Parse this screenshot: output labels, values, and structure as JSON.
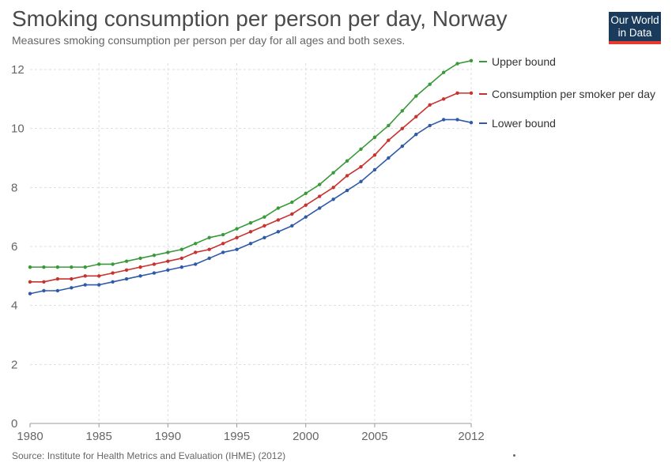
{
  "header": {
    "title": "Smoking consumption per person per day, Norway",
    "subtitle": "Measures smoking consumption per person per day for all ages and both sexes."
  },
  "logo": {
    "line1": "Our World",
    "line2": "in Data",
    "bg_color": "#1a3b5c",
    "accent_color": "#e63a2e"
  },
  "footer": {
    "source": "Source: Institute for Health Metrics and Evaluation (IHME) (2012)"
  },
  "chart_data": {
    "type": "line",
    "title": "Smoking consumption per person per day, Norway",
    "xlabel": "",
    "ylabel": "",
    "xlim": [
      1980,
      2012
    ],
    "ylim": [
      0,
      12
    ],
    "x_ticks": [
      1980,
      1985,
      1990,
      1995,
      2000,
      2005,
      2012
    ],
    "y_ticks": [
      0,
      2,
      4,
      6,
      8,
      10,
      12
    ],
    "grid": true,
    "legend_position": "right",
    "x": [
      1980,
      1981,
      1982,
      1983,
      1984,
      1985,
      1986,
      1987,
      1988,
      1989,
      1990,
      1991,
      1992,
      1993,
      1994,
      1995,
      1996,
      1997,
      1998,
      1999,
      2000,
      2001,
      2002,
      2003,
      2004,
      2005,
      2006,
      2007,
      2008,
      2009,
      2010,
      2011,
      2012
    ],
    "series": [
      {
        "name": "Upper bound",
        "color": "#3a9a3a",
        "values": [
          5.3,
          5.3,
          5.3,
          5.3,
          5.3,
          5.4,
          5.4,
          5.5,
          5.6,
          5.7,
          5.8,
          5.9,
          6.1,
          6.3,
          6.4,
          6.6,
          6.8,
          7.0,
          7.3,
          7.5,
          7.8,
          8.1,
          8.5,
          8.9,
          9.3,
          9.7,
          10.1,
          10.6,
          11.1,
          11.5,
          11.9,
          12.2,
          12.3
        ]
      },
      {
        "name": "Consumption per smoker per day",
        "color": "#c8322e",
        "values": [
          4.8,
          4.8,
          4.9,
          4.9,
          5.0,
          5.0,
          5.1,
          5.2,
          5.3,
          5.4,
          5.5,
          5.6,
          5.8,
          5.9,
          6.1,
          6.3,
          6.5,
          6.7,
          6.9,
          7.1,
          7.4,
          7.7,
          8.0,
          8.4,
          8.7,
          9.1,
          9.6,
          10.0,
          10.4,
          10.8,
          11.0,
          11.2,
          11.2
        ]
      },
      {
        "name": "Lower bound",
        "color": "#2f5aa8",
        "values": [
          4.4,
          4.5,
          4.5,
          4.6,
          4.7,
          4.7,
          4.8,
          4.9,
          5.0,
          5.1,
          5.2,
          5.3,
          5.4,
          5.6,
          5.8,
          5.9,
          6.1,
          6.3,
          6.5,
          6.7,
          7.0,
          7.3,
          7.6,
          7.9,
          8.2,
          8.6,
          9.0,
          9.4,
          9.8,
          10.1,
          10.3,
          10.3,
          10.2
        ]
      }
    ]
  }
}
